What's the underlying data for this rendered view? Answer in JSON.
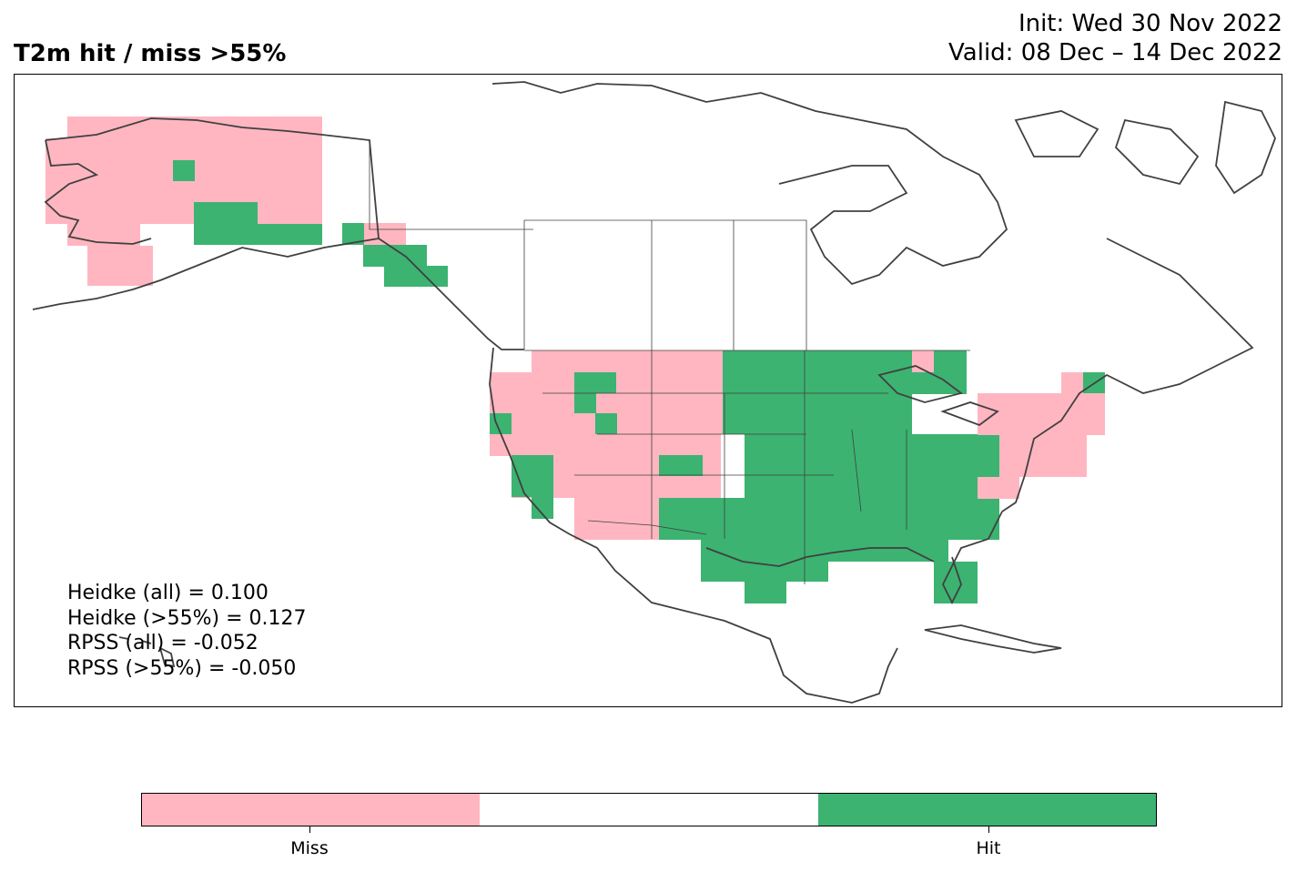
{
  "title": "T2m hit / miss  >55%",
  "init_line": "Init: Wed 30 Nov 2022",
  "valid_line": "Valid: 08 Dec – 14 Dec 2022",
  "stats": [
    "Heidke (all) = 0.100",
    "Heidke (>55%) = 0.127",
    "RPSS (all) = -0.052",
    "RPSS (>55%) = -0.050"
  ],
  "colors": {
    "miss": "#ffb6c1",
    "neutral": "#ffffff",
    "hit": "#3cb371",
    "coast": "#404040"
  },
  "colorbar": {
    "labels": [
      "Miss",
      "Hit"
    ],
    "segments": [
      "miss",
      "neutral",
      "hit"
    ]
  }
}
